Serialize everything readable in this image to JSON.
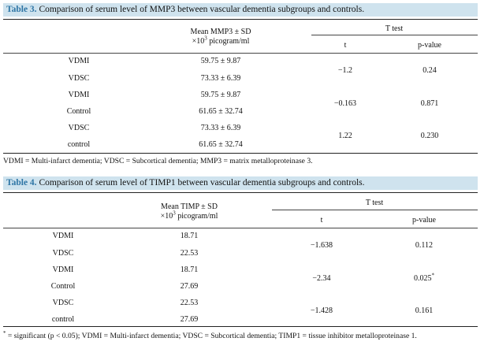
{
  "table3": {
    "caption_label": "Table 3.",
    "caption_text": "Comparison of serum level of MMP3 between vascular dementia subgroups and controls.",
    "header_mean_line1": "Mean MMP3 ± SD",
    "header_mean_prefix": "×10",
    "header_mean_exp": "3",
    "header_mean_suffix": " picogram/ml",
    "header_ttest": "T test",
    "header_t": "t",
    "header_p": "p-value",
    "rows": [
      {
        "group": "VDMI",
        "mean": "59.75 ± 9.87"
      },
      {
        "group": "VDSC",
        "mean": "73.33 ± 6.39"
      },
      {
        "group": "VDMI",
        "mean": "59.75 ± 9.87"
      },
      {
        "group": "Control",
        "mean": "61.65 ± 32.74"
      },
      {
        "group": "VDSC",
        "mean": "73.33 ± 6.39"
      },
      {
        "group": "control",
        "mean": "61.65 ± 32.74"
      }
    ],
    "tests": [
      {
        "t": "−1.2",
        "p": "0.24",
        "p_mark": ""
      },
      {
        "t": "−0.163",
        "p": "0.871",
        "p_mark": ""
      },
      {
        "t": "1.22",
        "p": "0.230",
        "p_mark": ""
      }
    ],
    "footnote_mark": "",
    "footnote": "VDMI = Multi-infarct dementia; VDSC = Subcortical dementia; MMP3 = matrix metalloproteinase 3."
  },
  "table4": {
    "caption_label": "Table 4.",
    "caption_text": "Comparison of serum level of TIMP1 between vascular dementia subgroups and controls.",
    "header_mean_line1": "Mean TIMP ± SD",
    "header_mean_prefix": "×10",
    "header_mean_exp": "3",
    "header_mean_suffix": " picogram/ml",
    "header_ttest": "T test",
    "header_t": "t",
    "header_p": "p-value",
    "rows": [
      {
        "group": "VDMI",
        "mean": "18.71"
      },
      {
        "group": "VDSC",
        "mean": "22.53"
      },
      {
        "group": "VDMI",
        "mean": "18.71"
      },
      {
        "group": "Control",
        "mean": "27.69"
      },
      {
        "group": "VDSC",
        "mean": "22.53"
      },
      {
        "group": "control",
        "mean": "27.69"
      }
    ],
    "tests": [
      {
        "t": "−1.638",
        "p": "0.112",
        "p_mark": ""
      },
      {
        "t": "−2.34",
        "p": "0.025",
        "p_mark": "*"
      },
      {
        "t": "−1.428",
        "p": "0.161",
        "p_mark": ""
      }
    ],
    "footnote_mark": "*",
    "footnote": " = significant (p < 0.05); VDMI = Multi-infarct dementia; VDSC = Subcortical dementia; TIMP1 = tissue inhibitor metalloproteinase 1."
  }
}
